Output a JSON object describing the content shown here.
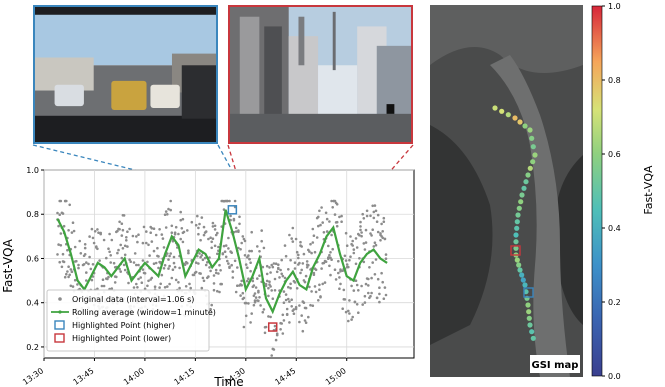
{
  "chart_data": {
    "type": "scatter",
    "xlabel": "Time",
    "ylabel": "Fast-VQA",
    "xticks": [
      "13:30",
      "13:45",
      "14:00",
      "14:15",
      "14:30",
      "14:45",
      "15:00"
    ],
    "yticks": [
      "0.2",
      "0.4",
      "0.6",
      "0.8",
      "1.0"
    ],
    "ylim": [
      0.15,
      1.0
    ],
    "xlim_minutes": [
      0,
      110
    ],
    "grid": true,
    "legend_position": "lower-left",
    "legend": {
      "original": "Original data (interval=1.06 s)",
      "rolling": "Rolling average (window=1 minute)",
      "higher": "Highlighted Point (higher)",
      "lower": "Highlighted Point (lower)"
    },
    "colors": {
      "original": "#8c8c8c",
      "rolling": "#3fa33f",
      "higher": "#3a86bd",
      "lower": "#c8373d"
    },
    "rolling_average": {
      "time": [
        "13:34",
        "13:36",
        "13:38",
        "13:40",
        "13:42",
        "13:44",
        "13:46",
        "13:48",
        "13:50",
        "13:52",
        "13:54",
        "13:56",
        "13:58",
        "14:00",
        "14:02",
        "14:04",
        "14:06",
        "14:08",
        "14:10",
        "14:12",
        "14:14",
        "14:16",
        "14:18",
        "14:20",
        "14:22",
        "14:24",
        "14:26",
        "14:28",
        "14:30",
        "14:32",
        "14:34",
        "14:36",
        "14:38",
        "14:40",
        "14:42",
        "14:44",
        "14:46",
        "14:48",
        "14:50",
        "14:52",
        "14:54",
        "14:56",
        "14:58",
        "15:00",
        "15:02",
        "15:04",
        "15:06",
        "15:08",
        "15:10",
        "15:12"
      ],
      "value": [
        0.78,
        0.72,
        0.62,
        0.5,
        0.46,
        0.52,
        0.58,
        0.56,
        0.52,
        0.56,
        0.6,
        0.5,
        0.54,
        0.58,
        0.55,
        0.52,
        0.62,
        0.7,
        0.66,
        0.52,
        0.58,
        0.64,
        0.62,
        0.56,
        0.6,
        0.82,
        0.72,
        0.6,
        0.46,
        0.52,
        0.6,
        0.42,
        0.36,
        0.44,
        0.5,
        0.54,
        0.48,
        0.46,
        0.56,
        0.62,
        0.7,
        0.74,
        0.62,
        0.52,
        0.5,
        0.58,
        0.62,
        0.64,
        0.6,
        0.58
      ]
    },
    "highlighted": {
      "higher": {
        "time": "14:26",
        "value": 0.82
      },
      "lower": {
        "time": "14:38",
        "value": 0.29
      }
    },
    "colorbar": {
      "label": "Fast-VQA",
      "ticks": [
        "0.0",
        "0.2",
        "0.4",
        "0.6",
        "0.8",
        "1.0"
      ],
      "range": [
        0.0,
        1.0
      ]
    },
    "map": {
      "label": "GSI map",
      "track_values": [
        0.7,
        0.72,
        0.66,
        0.8,
        0.78,
        0.6,
        0.62,
        0.58,
        0.55,
        0.62,
        0.6,
        0.66,
        0.58,
        0.52,
        0.5,
        0.55,
        0.6,
        0.58,
        0.54,
        0.5,
        0.48,
        0.45,
        0.52,
        0.56,
        0.6,
        0.62,
        0.58,
        0.5,
        0.4,
        0.36,
        0.42,
        0.48,
        0.55,
        0.6,
        0.62,
        0.58,
        0.52,
        0.48,
        0.5,
        0.55
      ]
    }
  }
}
